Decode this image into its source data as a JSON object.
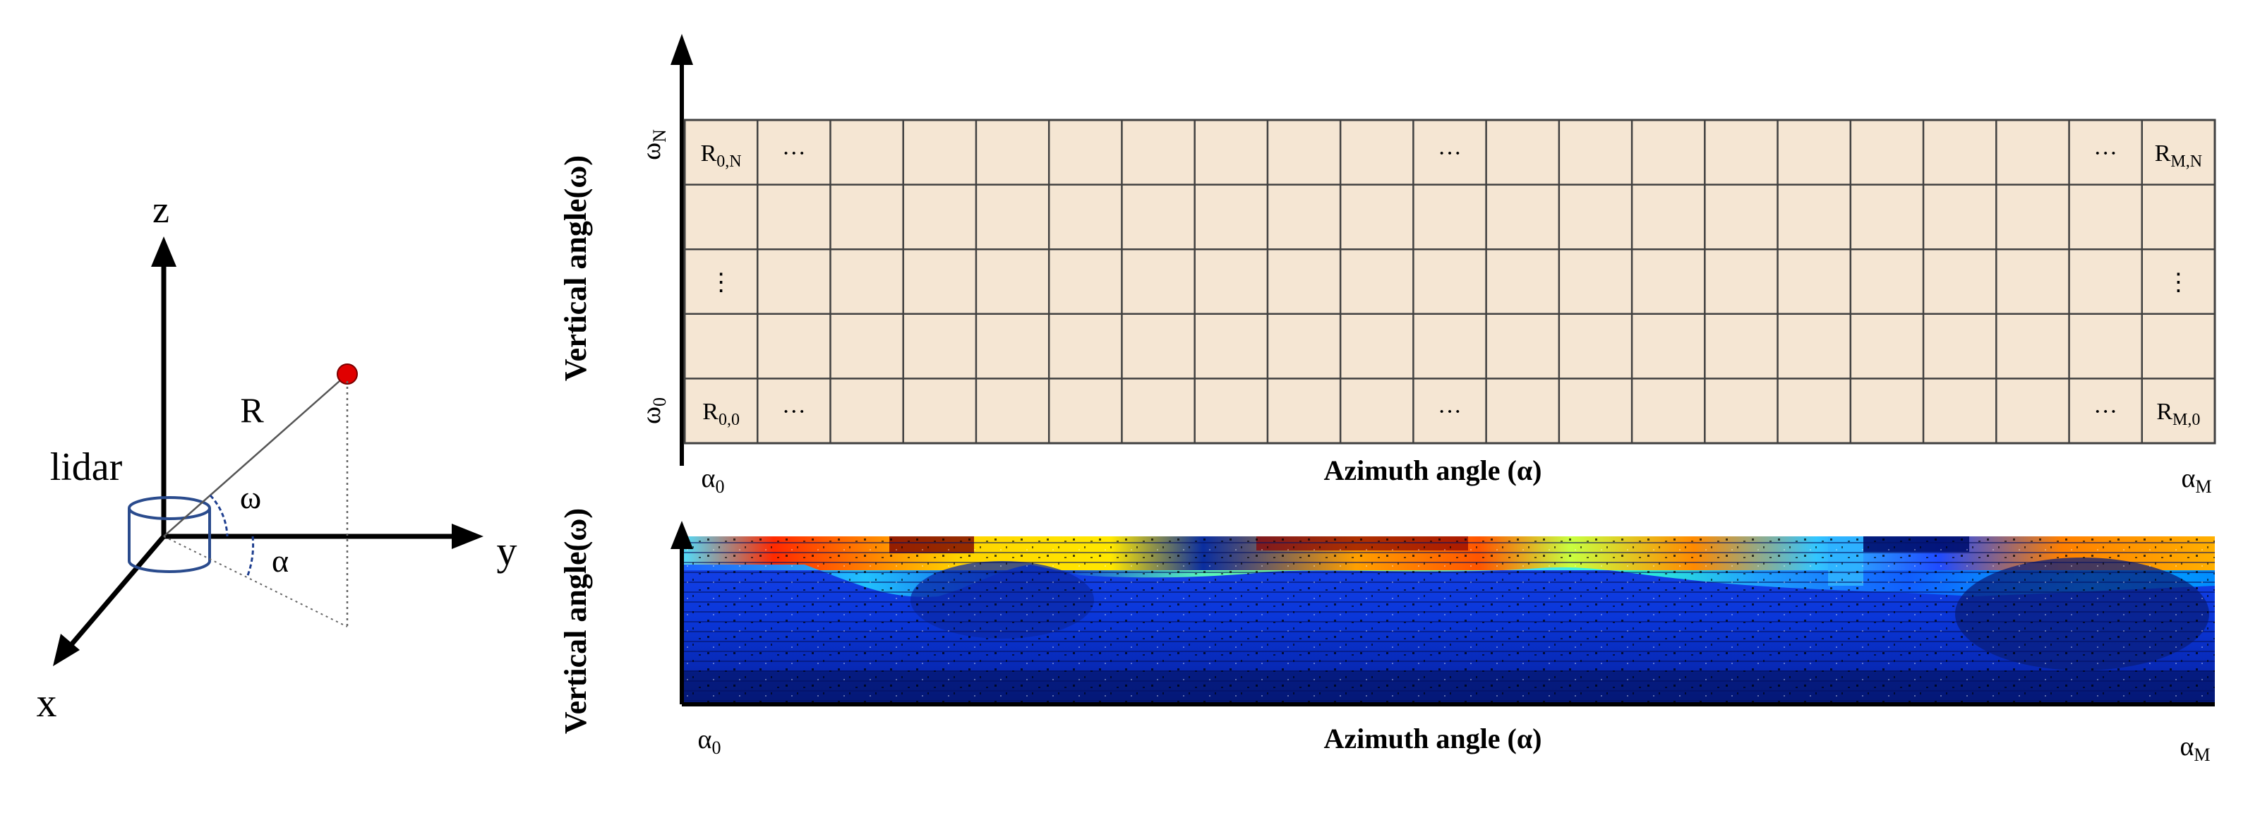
{
  "lidar_diagram": {
    "device_label": "lidar",
    "axis_z": "z",
    "axis_y": "y",
    "axis_x": "x",
    "range_label": "R",
    "elevation_label": "ω",
    "azimuth_label": "α",
    "colors": {
      "axis": "#000000",
      "point": "#e00000",
      "arc": "#1f3f8f",
      "device": "#2a4b8d"
    }
  },
  "range_grid": {
    "y_axis_label": "Vertical angle(ω)",
    "x_axis_label": "Azimuth angle (α)",
    "top_row_label": {
      "base": "ω",
      "sub": "N"
    },
    "bottom_row_label": {
      "base": "ω",
      "sub": "0"
    },
    "left_col_label": {
      "base": "α",
      "sub": "0"
    },
    "right_col_label": {
      "base": "α",
      "sub": "M"
    },
    "rows": 5,
    "cols": 21,
    "cells": {
      "top_left": {
        "base": "R",
        "sub": "0,N"
      },
      "top_right": {
        "base": "R",
        "sub": "M,N"
      },
      "bottom_left": {
        "base": "R",
        "sub": "0,0"
      },
      "bottom_right": {
        "base": "R",
        "sub": "M,0"
      },
      "ellipsis_h": "···",
      "ellipsis_v": "⋮"
    },
    "colors": {
      "cell_fill": "#f5e6d3",
      "grid_line": "#404040"
    }
  },
  "range_image": {
    "y_axis_label": "Vertical angle(ω)",
    "x_axis_label": "Azimuth angle (α)",
    "left_col_label": {
      "base": "α",
      "sub": "0"
    },
    "right_col_label": {
      "base": "α",
      "sub": "M"
    },
    "colormap": "jet"
  }
}
